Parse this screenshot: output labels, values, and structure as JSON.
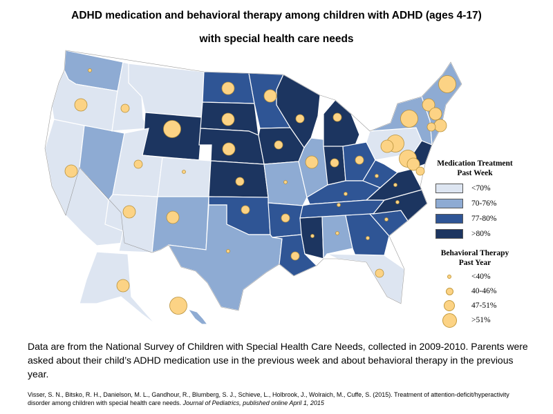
{
  "title_line1": "ADHD medication and behavioral therapy among children with ADHD (ages 4-17)",
  "title_line2": "with special health care needs",
  "colors": {
    "lt70": "#dde5f1",
    "c70_76": "#8eabd3",
    "c77_80": "#2f5595",
    "gt80": "#1c3560",
    "bubble": "#fcd385",
    "border": "#ffffff"
  },
  "legend": {
    "medication_title_1": "Medication Treatment",
    "medication_title_2": "Past Week",
    "medication_items": [
      {
        "label": "<70%",
        "color_key": "lt70"
      },
      {
        "label": "70-76%",
        "color_key": "c70_76"
      },
      {
        "label": "77-80%",
        "color_key": "c77_80"
      },
      {
        "label": ">80%",
        "color_key": "gt80"
      }
    ],
    "therapy_title_1": "Behavioral Therapy",
    "therapy_title_2": "Past Year",
    "therapy_items": [
      {
        "label": "<40%",
        "level": 1
      },
      {
        "label": "40-46%",
        "level": 2
      },
      {
        "label": "47-51%",
        "level": 3
      },
      {
        "label": ">51%",
        "level": 4
      }
    ]
  },
  "states": [
    {
      "id": "WA",
      "med": "c70_76",
      "ther": 1
    },
    {
      "id": "OR",
      "med": "lt70",
      "ther": 3
    },
    {
      "id": "CA",
      "med": "lt70",
      "ther": 3
    },
    {
      "id": "NV",
      "med": "c70_76",
      "ther": 0
    },
    {
      "id": "ID",
      "med": "lt70",
      "ther": 2
    },
    {
      "id": "MT",
      "med": "lt70",
      "ther": 0
    },
    {
      "id": "WY",
      "med": "gt80",
      "ther": 4
    },
    {
      "id": "UT",
      "med": "lt70",
      "ther": 2
    },
    {
      "id": "AZ",
      "med": "lt70",
      "ther": 3
    },
    {
      "id": "CO",
      "med": "lt70",
      "ther": 1
    },
    {
      "id": "NM",
      "med": "c70_76",
      "ther": 3
    },
    {
      "id": "ND",
      "med": "c77_80",
      "ther": 3
    },
    {
      "id": "SD",
      "med": "gt80",
      "ther": 3
    },
    {
      "id": "NE",
      "med": "gt80",
      "ther": 3
    },
    {
      "id": "KS",
      "med": "gt80",
      "ther": 2
    },
    {
      "id": "OK",
      "med": "c77_80",
      "ther": 2
    },
    {
      "id": "TX",
      "med": "c70_76",
      "ther": 1
    },
    {
      "id": "MN",
      "med": "c77_80",
      "ther": 3
    },
    {
      "id": "IA",
      "med": "gt80",
      "ther": 2
    },
    {
      "id": "MO",
      "med": "c70_76",
      "ther": 1
    },
    {
      "id": "AR",
      "med": "c77_80",
      "ther": 2
    },
    {
      "id": "LA",
      "med": "c77_80",
      "ther": 2
    },
    {
      "id": "WI",
      "med": "gt80",
      "ther": 2
    },
    {
      "id": "IL",
      "med": "c70_76",
      "ther": 3
    },
    {
      "id": "MI",
      "med": "gt80",
      "ther": 2
    },
    {
      "id": "IN",
      "med": "gt80",
      "ther": 2
    },
    {
      "id": "OH",
      "med": "c77_80",
      "ther": 2
    },
    {
      "id": "KY",
      "med": "c77_80",
      "ther": 1
    },
    {
      "id": "TN",
      "med": "c77_80",
      "ther": 1
    },
    {
      "id": "MS",
      "med": "gt80",
      "ther": 1
    },
    {
      "id": "AL",
      "med": "c70_76",
      "ther": 1
    },
    {
      "id": "GA",
      "med": "c77_80",
      "ther": 1
    },
    {
      "id": "FL",
      "med": "lt70",
      "ther": 2
    },
    {
      "id": "SC",
      "med": "c77_80",
      "ther": 1
    },
    {
      "id": "NC",
      "med": "gt80",
      "ther": 1
    },
    {
      "id": "VA",
      "med": "gt80",
      "ther": 1
    },
    {
      "id": "WV",
      "med": "c77_80",
      "ther": 1
    },
    {
      "id": "PA",
      "med": "lt70",
      "ther": 4
    },
    {
      "id": "NY",
      "med": "c70_76",
      "ther": 4
    },
    {
      "id": "ME",
      "med": "lt70",
      "ther": 4
    },
    {
      "id": "AK",
      "med": "lt70",
      "ther": 3
    },
    {
      "id": "HI",
      "med": "c70_76",
      "ther": 4
    }
  ],
  "footnote": "Data are from the National Survey of Children with Special Health Care Needs, collected in 2009-2010. Parents were asked about their child’s ADHD medication use in the previous week and about behavioral therapy in the previous year.",
  "citation_authors": "Visser, S. N., Bitsko, R. H., Danielson, M. L., Gandhour, R., Blumberg, S. J., Schieve, L., Holbrook, J., Wolraich, M., Cuffe, S. (2015). Treatment of attention-deficit/hyperactivity disorder among children with special health care needs. ",
  "citation_journal": "Journal of Pediatrics, published online April 1, 2015"
}
